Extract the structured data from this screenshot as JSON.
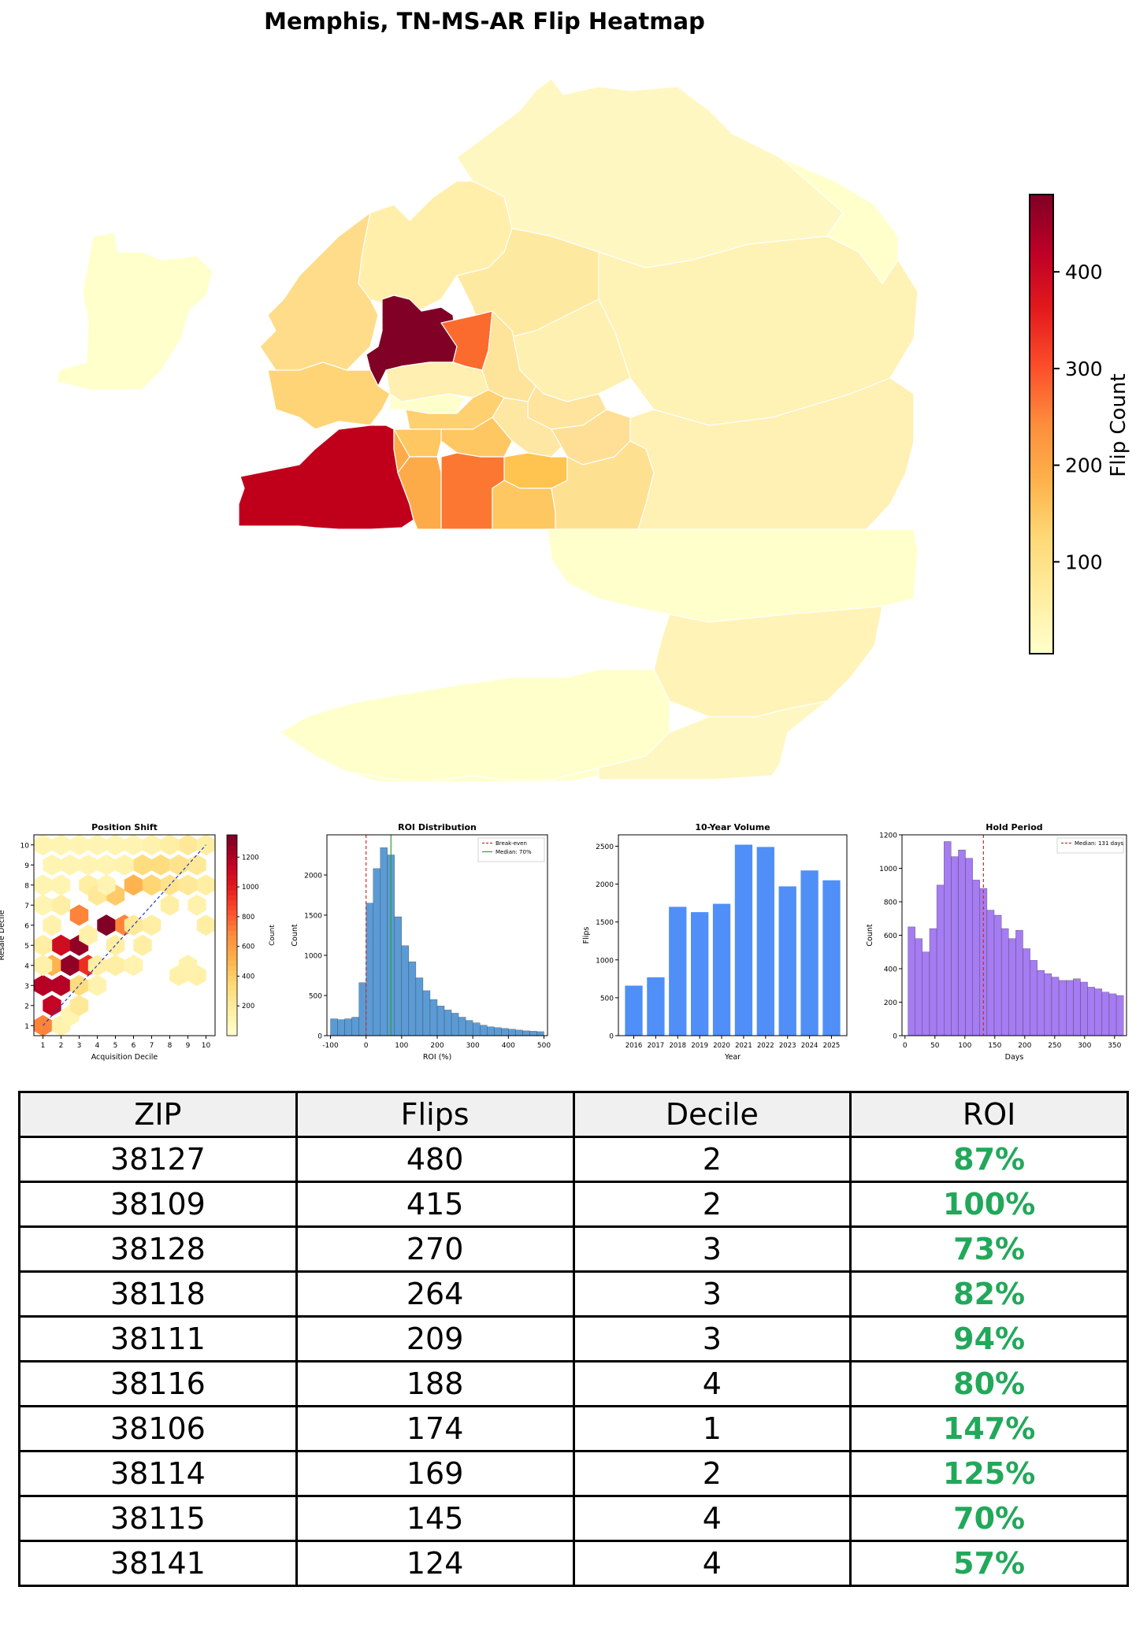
{
  "title": "Memphis, TN-MS-AR Flip Heatmap",
  "colorbar": {
    "label": "Flip Count",
    "ticks": [
      100,
      200,
      300,
      400
    ],
    "range": [
      5,
      480
    ],
    "colormap": [
      "#ffffcc",
      "#ffeda0",
      "#fed976",
      "#feb24c",
      "#fd8d3c",
      "#fc4e2a",
      "#e31a1c",
      "#bd0026",
      "#800026"
    ]
  },
  "chart_data": [
    {
      "type": "heatmap",
      "title": "Position Shift",
      "xlabel": "Acquisition Decile",
      "ylabel": "Resale Decile",
      "xticks": [
        1,
        2,
        3,
        4,
        5,
        6,
        7,
        8,
        9,
        10
      ],
      "yticks": [
        1,
        2,
        3,
        4,
        5,
        6,
        7,
        8,
        9,
        10
      ],
      "xlim": [
        0.5,
        10.5
      ],
      "ylim": [
        0.5,
        10.5
      ],
      "diagonal": "y = x (blue dashed)",
      "colorbar_label": "Count",
      "colorbar_ticks": [
        200,
        400,
        600,
        800,
        1000,
        1200
      ],
      "colorbar_range": [
        0,
        1350
      ],
      "cells": [
        {
          "x": 1,
          "y": 1,
          "v": 700
        },
        {
          "x": 1.5,
          "y": 2,
          "v": 1150
        },
        {
          "x": 1,
          "y": 3,
          "v": 1200
        },
        {
          "x": 2,
          "y": 1,
          "v": 120
        },
        {
          "x": 2.5,
          "y": 1.5,
          "v": 100
        },
        {
          "x": 2,
          "y": 3,
          "v": 1200
        },
        {
          "x": 1.5,
          "y": 4,
          "v": 500
        },
        {
          "x": 2,
          "y": 5,
          "v": 1100
        },
        {
          "x": 2.5,
          "y": 4,
          "v": 1300
        },
        {
          "x": 3,
          "y": 5,
          "v": 1300
        },
        {
          "x": 3.5,
          "y": 4,
          "v": 950
        },
        {
          "x": 3,
          "y": 3,
          "v": 300
        },
        {
          "x": 1,
          "y": 5,
          "v": 150
        },
        {
          "x": 1.5,
          "y": 6,
          "v": 120
        },
        {
          "x": 3,
          "y": 2,
          "v": 200
        },
        {
          "x": 2,
          "y": 7,
          "v": 150
        },
        {
          "x": 3,
          "y": 6.5,
          "v": 700
        },
        {
          "x": 3.5,
          "y": 8,
          "v": 150
        },
        {
          "x": 4.5,
          "y": 6,
          "v": 1350
        },
        {
          "x": 5.5,
          "y": 6,
          "v": 700
        },
        {
          "x": 5,
          "y": 5,
          "v": 150
        },
        {
          "x": 5,
          "y": 7.5,
          "v": 400
        },
        {
          "x": 4,
          "y": 7.5,
          "v": 200
        },
        {
          "x": 6,
          "y": 8,
          "v": 500
        },
        {
          "x": 6,
          "y": 6,
          "v": 200
        },
        {
          "x": 6.5,
          "y": 5,
          "v": 150
        },
        {
          "x": 7,
          "y": 6,
          "v": 150
        },
        {
          "x": 4,
          "y": 4,
          "v": 150
        },
        {
          "x": 5,
          "y": 4,
          "v": 150
        },
        {
          "x": 6.5,
          "y": 9,
          "v": 300
        },
        {
          "x": 7.5,
          "y": 9,
          "v": 300
        },
        {
          "x": 8.5,
          "y": 9,
          "v": 250
        },
        {
          "x": 9.5,
          "y": 9,
          "v": 200
        },
        {
          "x": 9,
          "y": 10,
          "v": 200
        },
        {
          "x": 8,
          "y": 10,
          "v": 150
        },
        {
          "x": 10,
          "y": 10,
          "v": 150
        },
        {
          "x": 7,
          "y": 10,
          "v": 120
        },
        {
          "x": 6,
          "y": 10,
          "v": 100
        },
        {
          "x": 5,
          "y": 10,
          "v": 100
        },
        {
          "x": 4,
          "y": 10,
          "v": 100
        },
        {
          "x": 3,
          "y": 10,
          "v": 100
        },
        {
          "x": 2,
          "y": 10,
          "v": 100
        },
        {
          "x": 1,
          "y": 10,
          "v": 100
        },
        {
          "x": 1.5,
          "y": 9,
          "v": 100
        },
        {
          "x": 2.5,
          "y": 9,
          "v": 100
        },
        {
          "x": 3.5,
          "y": 9,
          "v": 100
        },
        {
          "x": 4.5,
          "y": 9,
          "v": 100
        },
        {
          "x": 5.5,
          "y": 9,
          "v": 120
        },
        {
          "x": 1,
          "y": 8,
          "v": 100
        },
        {
          "x": 2,
          "y": 8,
          "v": 100
        },
        {
          "x": 4.5,
          "y": 8,
          "v": 100
        },
        {
          "x": 7,
          "y": 8,
          "v": 350
        },
        {
          "x": 8,
          "y": 8,
          "v": 250
        },
        {
          "x": 9,
          "y": 8,
          "v": 200
        },
        {
          "x": 10,
          "y": 8,
          "v": 150
        },
        {
          "x": 9.5,
          "y": 7,
          "v": 120
        },
        {
          "x": 10,
          "y": 6,
          "v": 150
        },
        {
          "x": 8,
          "y": 7,
          "v": 150
        },
        {
          "x": 1,
          "y": 7,
          "v": 100
        },
        {
          "x": 1,
          "y": 4,
          "v": 130
        },
        {
          "x": 3.5,
          "y": 5.5,
          "v": 130
        },
        {
          "x": 8.5,
          "y": 3.5,
          "v": 130
        },
        {
          "x": 9.5,
          "y": 3.5,
          "v": 130
        },
        {
          "x": 9,
          "y": 4,
          "v": 120
        },
        {
          "x": 6,
          "y": 4,
          "v": 110
        },
        {
          "x": 4,
          "y": 3,
          "v": 110
        }
      ]
    },
    {
      "type": "bar",
      "title": "ROI Distribution",
      "xlabel": "ROI (%)",
      "ylabel": "Count",
      "xlim": [
        -110,
        510
      ],
      "ylim": [
        0,
        2500
      ],
      "xticks": [
        -100,
        0,
        100,
        200,
        300,
        400,
        500
      ],
      "yticks": [
        0,
        500,
        1000,
        1500,
        2000
      ],
      "color": "#5b9bd5",
      "bin_width": 20,
      "bin_starts": [
        -100,
        -80,
        -60,
        -40,
        -20,
        0,
        20,
        40,
        60,
        80,
        100,
        120,
        140,
        160,
        180,
        200,
        220,
        240,
        260,
        280,
        300,
        320,
        340,
        360,
        380,
        400,
        420,
        440,
        460,
        480
      ],
      "values": [
        210,
        200,
        210,
        230,
        660,
        1650,
        2080,
        2340,
        2250,
        1480,
        1120,
        920,
        720,
        560,
        450,
        370,
        320,
        280,
        230,
        190,
        160,
        130,
        110,
        100,
        90,
        80,
        70,
        60,
        55,
        50
      ],
      "reference_lines": [
        {
          "label": "Break-even",
          "x": 0,
          "color": "#d62728",
          "style": "dashed"
        },
        {
          "label": "Median: 70%",
          "x": 70,
          "color": "#2ca02c",
          "style": "solid"
        }
      ],
      "legend": "top-right"
    },
    {
      "type": "bar",
      "title": "10-Year Volume",
      "xlabel": "Year",
      "ylabel": "Flips",
      "ylim": [
        0,
        2650
      ],
      "yticks": [
        0,
        500,
        1000,
        1500,
        2000,
        2500
      ],
      "color": "#4f8ff7",
      "categories": [
        "2016",
        "2017",
        "2018",
        "2019",
        "2020",
        "2021",
        "2022",
        "2023",
        "2024",
        "2025"
      ],
      "values": [
        660,
        770,
        1700,
        1630,
        1740,
        2520,
        2490,
        1970,
        2180,
        2050
      ]
    },
    {
      "type": "bar",
      "title": "Hold Period",
      "xlabel": "Days",
      "ylabel": "Count",
      "xlim": [
        -5,
        370
      ],
      "ylim": [
        0,
        1200
      ],
      "xticks": [
        0,
        50,
        100,
        150,
        200,
        250,
        300,
        350
      ],
      "yticks": [
        0,
        200,
        400,
        600,
        800,
        1000,
        1200
      ],
      "color": "#a57cf2",
      "bin_width": 12,
      "bin_starts": [
        5,
        17,
        29,
        41,
        53,
        65,
        77,
        89,
        101,
        113,
        125,
        137,
        149,
        161,
        173,
        185,
        197,
        209,
        221,
        233,
        245,
        257,
        269,
        281,
        293,
        305,
        317,
        329,
        341,
        353
      ],
      "values": [
        650,
        580,
        500,
        640,
        900,
        1160,
        1070,
        1110,
        1060,
        930,
        880,
        750,
        720,
        640,
        580,
        630,
        520,
        450,
        390,
        370,
        350,
        330,
        330,
        340,
        320,
        290,
        280,
        260,
        250,
        240
      ],
      "reference_lines": [
        {
          "label": "Median: 131 days",
          "x": 131,
          "color": "#d62728",
          "style": "dashed"
        }
      ],
      "legend": "top-right"
    },
    {
      "type": "table",
      "columns": [
        "ZIP",
        "Flips",
        "Decile",
        "ROI"
      ],
      "rows": [
        [
          "38127",
          "480",
          "2",
          "87%"
        ],
        [
          "38109",
          "415",
          "2",
          "100%"
        ],
        [
          "38128",
          "270",
          "3",
          "73%"
        ],
        [
          "38118",
          "264",
          "3",
          "82%"
        ],
        [
          "38111",
          "209",
          "3",
          "94%"
        ],
        [
          "38116",
          "188",
          "4",
          "80%"
        ],
        [
          "38106",
          "174",
          "1",
          "147%"
        ],
        [
          "38114",
          "169",
          "2",
          "125%"
        ],
        [
          "38115",
          "145",
          "4",
          "70%"
        ],
        [
          "38141",
          "124",
          "4",
          "57%"
        ]
      ]
    }
  ]
}
